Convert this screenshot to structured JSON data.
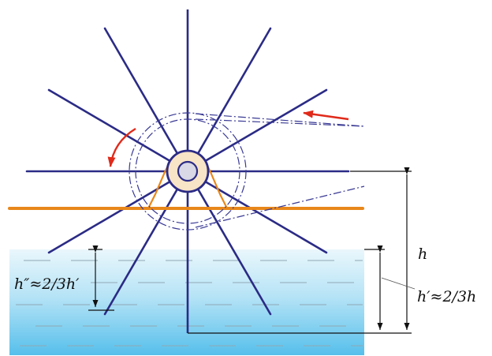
{
  "labels": {
    "h": "h",
    "h_prime": "h′≈2/3h",
    "h_double_prime": "h″≈2/3h′"
  },
  "colors": {
    "spoke": "#2b2b86",
    "belt": "#e8871a",
    "arrow": "#e02a1a",
    "hub_fill": "#f8e4c6",
    "water_top": "#e8f6fc",
    "water_bottom": "#58c0ec",
    "dimension": "#111111"
  },
  "icons": {
    "rotation": "curved-arrow-icon",
    "feed": "straight-arrow-icon"
  }
}
